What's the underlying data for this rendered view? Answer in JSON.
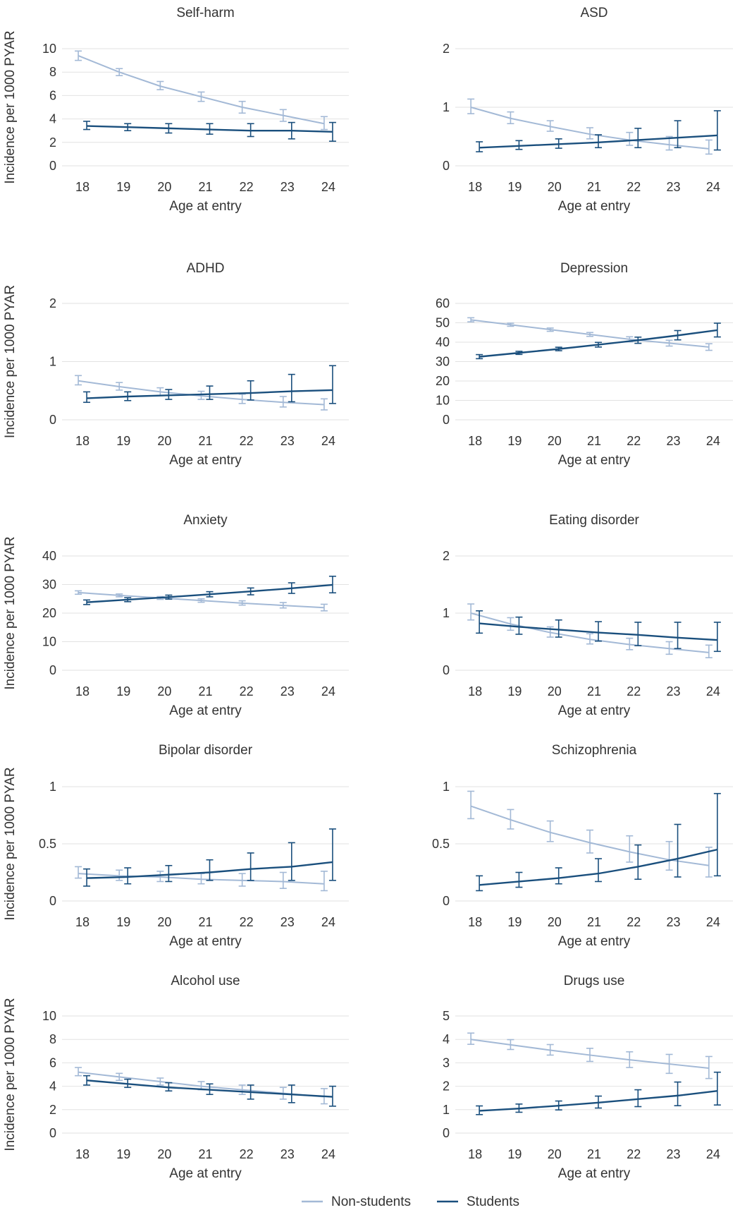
{
  "legend": {
    "non_students": "Non-students",
    "students": "Students"
  },
  "colors": {
    "non_students": "#a3b9d6",
    "students": "#1a4f7d",
    "grid": "#e2e2e2"
  },
  "axis": {
    "xlabel": "Age at entry",
    "ylabel": "Incidence per 1000 PYAR"
  },
  "chart_data": [
    {
      "type": "line",
      "title": "Self-harm",
      "x": [
        18,
        19,
        20,
        21,
        22,
        23,
        24
      ],
      "ylim": [
        0,
        10
      ],
      "yticks": [
        0,
        2,
        4,
        6,
        8,
        10
      ],
      "series": [
        {
          "name": "Non-students",
          "values": [
            9.4,
            8.0,
            6.8,
            5.9,
            5.0,
            4.3,
            3.6
          ],
          "lower": [
            9.0,
            7.7,
            6.5,
            5.5,
            4.5,
            3.8,
            3.1
          ],
          "upper": [
            9.8,
            8.3,
            7.2,
            6.3,
            5.5,
            4.8,
            4.2
          ]
        },
        {
          "name": "Students",
          "values": [
            3.4,
            3.3,
            3.2,
            3.1,
            3.0,
            3.0,
            2.9
          ],
          "lower": [
            3.1,
            3.0,
            2.8,
            2.7,
            2.5,
            2.3,
            2.1
          ],
          "upper": [
            3.8,
            3.6,
            3.6,
            3.6,
            3.6,
            3.7,
            3.7
          ]
        }
      ]
    },
    {
      "type": "line",
      "title": "ASD",
      "x": [
        18,
        19,
        20,
        21,
        22,
        23,
        24
      ],
      "ylim": [
        0,
        2
      ],
      "yticks": [
        0,
        1,
        2
      ],
      "series": [
        {
          "name": "Non-students",
          "values": [
            1.0,
            0.81,
            0.67,
            0.54,
            0.44,
            0.36,
            0.29
          ],
          "lower": [
            0.89,
            0.72,
            0.59,
            0.46,
            0.35,
            0.27,
            0.2
          ],
          "upper": [
            1.14,
            0.92,
            0.77,
            0.65,
            0.57,
            0.5,
            0.44
          ]
        },
        {
          "name": "Students",
          "values": [
            0.31,
            0.34,
            0.37,
            0.4,
            0.44,
            0.48,
            0.52
          ],
          "lower": [
            0.24,
            0.28,
            0.3,
            0.31,
            0.31,
            0.31,
            0.27
          ],
          "upper": [
            0.41,
            0.43,
            0.46,
            0.53,
            0.64,
            0.77,
            0.94
          ]
        }
      ]
    },
    {
      "type": "line",
      "title": "ADHD",
      "x": [
        18,
        19,
        20,
        21,
        22,
        23,
        24
      ],
      "ylim": [
        0,
        2
      ],
      "yticks": [
        0,
        1,
        2
      ],
      "series": [
        {
          "name": "Non-students",
          "values": [
            0.67,
            0.57,
            0.48,
            0.41,
            0.35,
            0.3,
            0.26
          ],
          "lower": [
            0.6,
            0.51,
            0.42,
            0.35,
            0.28,
            0.22,
            0.17
          ],
          "upper": [
            0.76,
            0.64,
            0.55,
            0.49,
            0.44,
            0.4,
            0.36
          ]
        },
        {
          "name": "Students",
          "values": [
            0.37,
            0.4,
            0.42,
            0.44,
            0.46,
            0.49,
            0.51
          ],
          "lower": [
            0.3,
            0.33,
            0.35,
            0.35,
            0.34,
            0.31,
            0.28
          ],
          "upper": [
            0.48,
            0.48,
            0.52,
            0.58,
            0.67,
            0.78,
            0.93
          ]
        }
      ]
    },
    {
      "type": "line",
      "title": "Depression",
      "x": [
        18,
        19,
        20,
        21,
        22,
        23,
        24
      ],
      "ylim": [
        0,
        60
      ],
      "yticks": [
        0,
        10,
        20,
        30,
        40,
        50,
        60
      ],
      "series": [
        {
          "name": "Non-students",
          "values": [
            51.5,
            49.0,
            46.5,
            44.0,
            41.5,
            39.5,
            37.5
          ],
          "lower": [
            50.5,
            48.2,
            45.6,
            43.0,
            40.2,
            38.0,
            35.8
          ],
          "upper": [
            52.6,
            49.8,
            47.3,
            45.0,
            42.8,
            41.0,
            39.2
          ]
        },
        {
          "name": "Students",
          "values": [
            32.5,
            34.5,
            36.5,
            38.7,
            41.0,
            43.5,
            46.2
          ],
          "lower": [
            31.5,
            33.7,
            35.6,
            37.5,
            39.4,
            41.2,
            42.7
          ],
          "upper": [
            33.6,
            35.3,
            37.4,
            39.9,
            42.6,
            46.0,
            49.8
          ]
        }
      ]
    },
    {
      "type": "line",
      "title": "Anxiety",
      "x": [
        18,
        19,
        20,
        21,
        22,
        23,
        24
      ],
      "ylim": [
        0,
        40
      ],
      "yticks": [
        0,
        10,
        20,
        30,
        40
      ],
      "series": [
        {
          "name": "Non-students",
          "values": [
            27.2,
            26.2,
            25.3,
            24.4,
            23.5,
            22.7,
            21.9
          ],
          "lower": [
            26.6,
            25.7,
            24.8,
            23.8,
            22.8,
            21.8,
            20.8
          ],
          "upper": [
            27.8,
            26.7,
            25.8,
            25.0,
            24.3,
            23.7,
            23.1
          ]
        },
        {
          "name": "Students",
          "values": [
            23.8,
            24.7,
            25.6,
            26.6,
            27.6,
            28.7,
            29.9
          ],
          "lower": [
            23.0,
            24.0,
            24.9,
            25.7,
            26.4,
            26.9,
            27.1
          ],
          "upper": [
            24.6,
            25.4,
            26.3,
            27.5,
            28.8,
            30.6,
            32.9
          ]
        }
      ]
    },
    {
      "type": "line",
      "title": "Eating disorder",
      "x": [
        18,
        19,
        20,
        21,
        22,
        23,
        24
      ],
      "ylim": [
        0,
        2
      ],
      "yticks": [
        0,
        1,
        2
      ],
      "series": [
        {
          "name": "Non-students",
          "values": [
            1.0,
            0.81,
            0.66,
            0.54,
            0.45,
            0.38,
            0.31
          ],
          "lower": [
            0.88,
            0.7,
            0.58,
            0.46,
            0.36,
            0.28,
            0.22
          ],
          "upper": [
            1.16,
            0.92,
            0.76,
            0.64,
            0.56,
            0.5,
            0.44
          ]
        },
        {
          "name": "Students",
          "values": [
            0.82,
            0.76,
            0.71,
            0.66,
            0.62,
            0.57,
            0.53
          ],
          "lower": [
            0.65,
            0.63,
            0.58,
            0.51,
            0.43,
            0.38,
            0.33
          ],
          "upper": [
            1.04,
            0.93,
            0.88,
            0.85,
            0.84,
            0.84,
            0.84
          ]
        }
      ]
    },
    {
      "type": "line",
      "title": "Bipolar disorder",
      "x": [
        18,
        19,
        20,
        21,
        22,
        23,
        24
      ],
      "ylim": [
        0,
        1
      ],
      "yticks": [
        0,
        0.5,
        1
      ],
      "series": [
        {
          "name": "Non-students",
          "values": [
            0.24,
            0.22,
            0.21,
            0.19,
            0.18,
            0.17,
            0.15
          ],
          "lower": [
            0.2,
            0.18,
            0.17,
            0.15,
            0.13,
            0.11,
            0.09
          ],
          "upper": [
            0.3,
            0.27,
            0.26,
            0.24,
            0.24,
            0.25,
            0.26
          ]
        },
        {
          "name": "Students",
          "values": [
            0.2,
            0.21,
            0.23,
            0.25,
            0.28,
            0.3,
            0.34
          ],
          "lower": [
            0.13,
            0.15,
            0.17,
            0.18,
            0.18,
            0.18,
            0.18
          ],
          "upper": [
            0.28,
            0.29,
            0.31,
            0.36,
            0.42,
            0.51,
            0.63
          ]
        }
      ]
    },
    {
      "type": "line",
      "title": "Schizophrenia",
      "x": [
        18,
        19,
        20,
        21,
        22,
        23,
        24
      ],
      "ylim": [
        0,
        1
      ],
      "yticks": [
        0,
        0.5,
        1
      ],
      "series": [
        {
          "name": "Non-students",
          "values": [
            0.83,
            0.71,
            0.6,
            0.51,
            0.43,
            0.36,
            0.31
          ],
          "lower": [
            0.72,
            0.63,
            0.52,
            0.42,
            0.34,
            0.27,
            0.21
          ],
          "upper": [
            0.96,
            0.8,
            0.7,
            0.62,
            0.57,
            0.52,
            0.47
          ]
        },
        {
          "name": "Students",
          "values": [
            0.14,
            0.17,
            0.2,
            0.24,
            0.3,
            0.37,
            0.45
          ],
          "lower": [
            0.09,
            0.12,
            0.15,
            0.17,
            0.19,
            0.21,
            0.22
          ],
          "upper": [
            0.22,
            0.25,
            0.29,
            0.37,
            0.49,
            0.67,
            0.94
          ]
        }
      ]
    },
    {
      "type": "line",
      "title": "Alcohol use",
      "x": [
        18,
        19,
        20,
        21,
        22,
        23,
        24
      ],
      "ylim": [
        0,
        10
      ],
      "yticks": [
        0,
        2,
        4,
        6,
        8,
        10
      ],
      "series": [
        {
          "name": "Non-students",
          "values": [
            5.2,
            4.8,
            4.4,
            4.0,
            3.7,
            3.4,
            3.1
          ],
          "lower": [
            4.9,
            4.5,
            4.1,
            3.7,
            3.3,
            2.9,
            2.5
          ],
          "upper": [
            5.6,
            5.1,
            4.7,
            4.4,
            4.1,
            3.9,
            3.8
          ]
        },
        {
          "name": "Students",
          "values": [
            4.5,
            4.2,
            3.9,
            3.7,
            3.5,
            3.3,
            3.1
          ],
          "lower": [
            4.1,
            3.9,
            3.6,
            3.3,
            2.9,
            2.6,
            2.3
          ],
          "upper": [
            4.9,
            4.6,
            4.3,
            4.2,
            4.1,
            4.1,
            4.0
          ]
        }
      ]
    },
    {
      "type": "line",
      "title": "Drugs use",
      "x": [
        18,
        19,
        20,
        21,
        22,
        23,
        24
      ],
      "ylim": [
        0,
        5
      ],
      "yticks": [
        0,
        1,
        2,
        3,
        4,
        5
      ],
      "series": [
        {
          "name": "Non-students",
          "values": [
            4.0,
            3.77,
            3.54,
            3.33,
            3.13,
            2.95,
            2.77
          ],
          "lower": [
            3.79,
            3.57,
            3.33,
            3.06,
            2.8,
            2.55,
            2.33
          ],
          "upper": [
            4.27,
            3.99,
            3.78,
            3.62,
            3.47,
            3.36,
            3.27
          ]
        },
        {
          "name": "Students",
          "values": [
            0.95,
            1.05,
            1.17,
            1.3,
            1.45,
            1.6,
            1.8
          ],
          "lower": [
            0.79,
            0.89,
            0.99,
            1.07,
            1.13,
            1.17,
            1.2
          ],
          "upper": [
            1.16,
            1.24,
            1.37,
            1.58,
            1.85,
            2.18,
            2.6
          ]
        }
      ]
    }
  ]
}
